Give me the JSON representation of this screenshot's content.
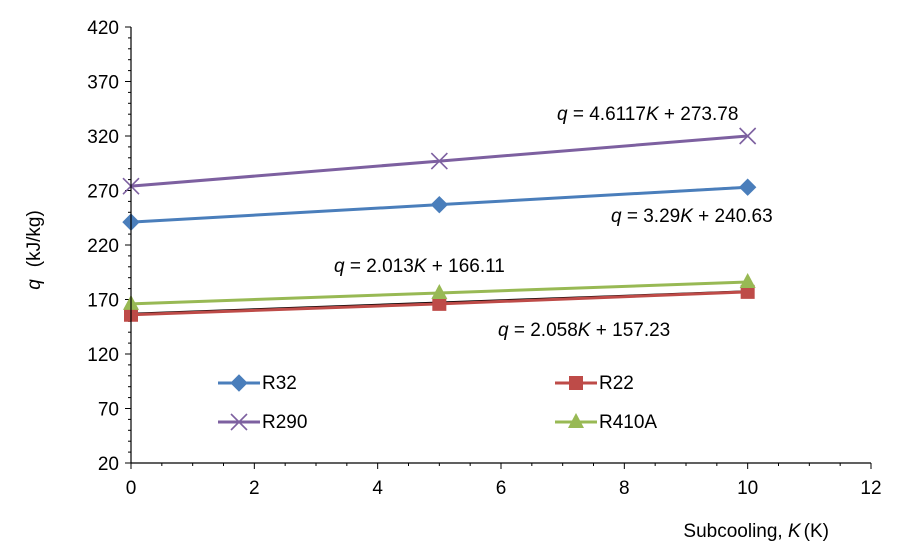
{
  "chart_data": {
    "type": "line",
    "ylabel_symbol": "q",
    "ylabel_unit": "(kJ/kg)",
    "xlabel_prefix": "Subcooling, ",
    "xlabel_symbol": "K",
    "xlabel_unit": "(K)",
    "xlim": [
      0,
      12
    ],
    "ylim": [
      20,
      420
    ],
    "xticks": [
      0,
      2,
      4,
      6,
      8,
      10,
      12
    ],
    "yticks": [
      20,
      70,
      120,
      170,
      220,
      270,
      320,
      370,
      420
    ],
    "grid": false,
    "legend_placement": "bottom",
    "series": [
      {
        "name": "R32",
        "marker": "diamond",
        "color": "#4a7ebb",
        "x": [
          0,
          5,
          10
        ],
        "y": [
          241,
          257,
          273
        ]
      },
      {
        "name": "R22",
        "marker": "square",
        "color": "#be4b48",
        "x": [
          0,
          5,
          10
        ],
        "y": [
          156,
          166,
          177
        ]
      },
      {
        "name": "R290",
        "marker": "x",
        "color": "#7d60a0",
        "x": [
          0,
          5,
          10
        ],
        "y": [
          274,
          297,
          320
        ]
      },
      {
        "name": "R410A",
        "marker": "triangle",
        "color": "#98b954",
        "x": [
          0,
          5,
          10
        ],
        "y": [
          166,
          176,
          186
        ]
      }
    ],
    "trendlines": [
      {
        "series": "R290",
        "slope": 4.6117,
        "intercept": 273.78,
        "equation": {
          "lhs": "q",
          "mid": " = 4.6117",
          "var": "K",
          "rhs": " + 273.78"
        }
      },
      {
        "series": "R32",
        "slope": 3.29,
        "intercept": 240.63,
        "equation": {
          "lhs": "q",
          "mid": " = 3.29",
          "var": "K",
          "rhs": " + 240.63"
        }
      },
      {
        "series": "R410A",
        "slope": 2.013,
        "intercept": 166.11,
        "equation": {
          "lhs": "q",
          "mid": " = 2.013",
          "var": "K",
          "rhs": " + 166.11"
        }
      },
      {
        "series": "R22",
        "slope": 2.058,
        "intercept": 157.23,
        "equation": {
          "lhs": "q",
          "mid": " = 2.058",
          "var": "K",
          "rhs": " + 157.23"
        }
      }
    ]
  }
}
